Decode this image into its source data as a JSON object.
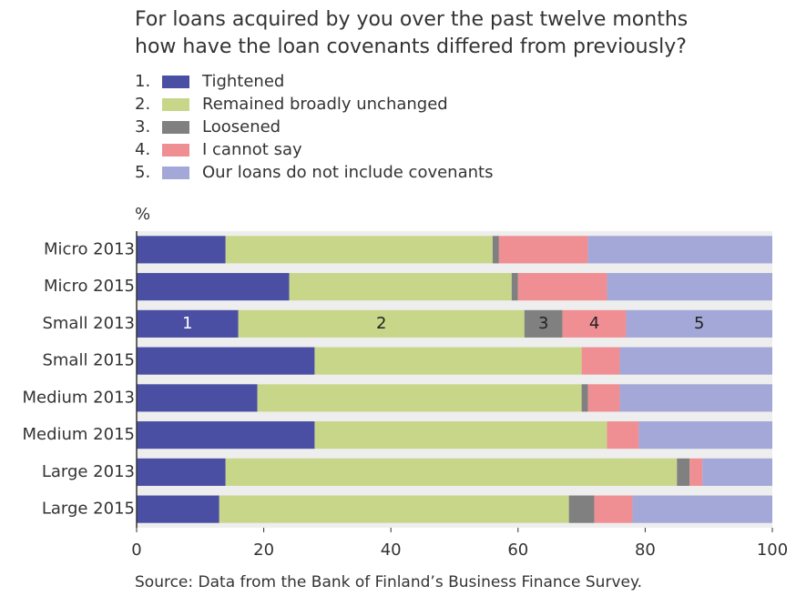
{
  "chart_data": {
    "type": "stacked-bar-horizontal",
    "title": [
      "For loans acquired by you over the past twelve months",
      "how have the loan covenants differed from previously?"
    ],
    "unit_label": "%",
    "source": "Source: Data from the Bank of Finland’s Business Finance Survey.",
    "categories": [
      "Micro 2013",
      "Micro 2015",
      "Small 2013",
      "Small 2015",
      "Medium 2013",
      "Medium 2015",
      "Large 2013",
      "Large 2015"
    ],
    "series": [
      {
        "number": "1.",
        "name": "Tightened",
        "color": "#4a4fa3",
        "values": [
          14,
          24,
          16,
          28,
          19,
          28,
          14,
          13
        ]
      },
      {
        "number": "2.",
        "name": "Remained broadly unchanged",
        "color": "#c8d68a",
        "values": [
          42,
          35,
          45,
          42,
          51,
          46,
          71,
          55
        ]
      },
      {
        "number": "3.",
        "name": "Loosened",
        "color": "#808080",
        "values": [
          1,
          1,
          6,
          0,
          1,
          0,
          2,
          4
        ]
      },
      {
        "number": "4.",
        "name": "I cannot say",
        "color": "#ef8f94",
        "values": [
          14,
          14,
          10,
          6,
          5,
          5,
          2,
          6
        ]
      },
      {
        "number": "5.",
        "name": "Our loans do not include covenants",
        "color": "#a3a8d8",
        "values": [
          29,
          26,
          23,
          24,
          24,
          21,
          11,
          22
        ]
      }
    ],
    "annotations": [
      {
        "text": "1",
        "category": "Small 2013",
        "series": "Tightened"
      },
      {
        "text": "2",
        "category": "Small 2013",
        "series": "Remained broadly unchanged"
      },
      {
        "text": "3",
        "category": "Small 2013",
        "series": "Loosened"
      },
      {
        "text": "4",
        "category": "Small 2013",
        "series": "I cannot say"
      },
      {
        "text": "5",
        "category": "Small 2013",
        "series": "Our loans do not include covenants"
      }
    ],
    "xlim": [
      0,
      100
    ],
    "xticks": [
      0,
      20,
      40,
      60,
      80,
      100
    ]
  }
}
